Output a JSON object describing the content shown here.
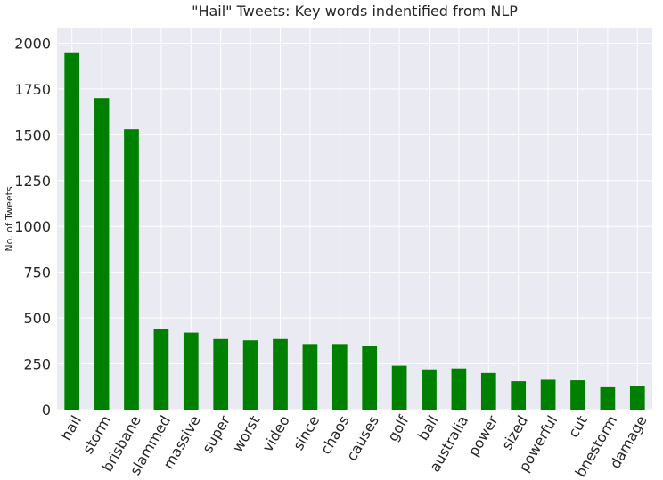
{
  "chart_data": {
    "type": "bar",
    "title": "\"Hail\" Tweets: Key words indentified from NLP",
    "xlabel": "",
    "ylabel": "No. of Tweets",
    "ylim": [
      0,
      2080
    ],
    "yticks": [
      0,
      250,
      500,
      750,
      1000,
      1250,
      1500,
      1750,
      2000
    ],
    "grid": true,
    "legend": "none",
    "categories": [
      "hail",
      "storm",
      "brisbane",
      "slammed",
      "massive",
      "super",
      "worst",
      "video",
      "since",
      "chaos",
      "causes",
      "golf",
      "ball",
      "australia",
      "power",
      "sized",
      "powerful",
      "cut",
      "bnestorm",
      "damage"
    ],
    "series": [
      {
        "values": [
          1950,
          1700,
          1530,
          440,
          420,
          385,
          378,
          385,
          358,
          358,
          348,
          240,
          220,
          225,
          200,
          155,
          163,
          160,
          122,
          127
        ]
      }
    ],
    "colors": {
      "bar": "#008000",
      "plot_bg": "#EAEAF2",
      "grid": "#FFFFFF"
    }
  }
}
